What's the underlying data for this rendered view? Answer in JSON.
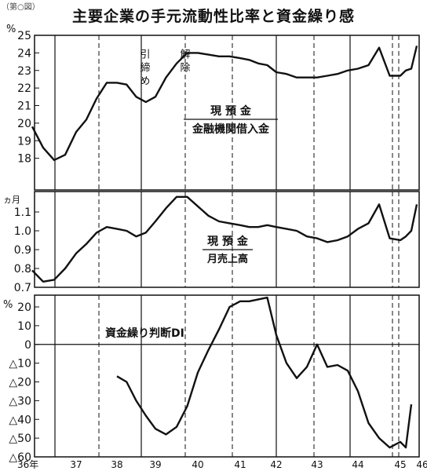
{
  "corner_note": "（第○図）",
  "title": "主要企業の手元流動性比率と資金繰り感",
  "x_axis": {
    "labels": [
      "36年",
      "37",
      "38",
      "39",
      "40",
      "41",
      "42",
      "43",
      "44",
      "45",
      "46"
    ],
    "solid_dividers": [
      "36年/37",
      "39/40",
      "41/42",
      "43/44"
    ],
    "dashed_dividers": [
      "37/38",
      "38/39",
      "40/41",
      "42/43",
      "44/45",
      "45/46"
    ]
  },
  "chart_data": [
    {
      "type": "line",
      "title": "",
      "ylabel": "%",
      "ylim": [
        17,
        25
      ],
      "yticks": [
        18,
        19,
        20,
        21,
        22,
        23,
        24,
        25
      ],
      "annotation_numerator": "現 預 金",
      "annotation_denominator": "金融機関借入金",
      "event_labels": [
        "引締め",
        "解除"
      ],
      "x": [
        36.0,
        36.25,
        36.5,
        36.75,
        37.0,
        37.25,
        37.5,
        37.75,
        38.0,
        38.25,
        38.5,
        38.75,
        39.0,
        39.25,
        39.5,
        39.75,
        40.0,
        40.25,
        40.5,
        40.75,
        41.0,
        41.25,
        41.5,
        41.75,
        42.0,
        42.25,
        42.5,
        42.75,
        43.0,
        43.25,
        43.5,
        43.75,
        44.0,
        44.25,
        44.5,
        44.75,
        45.0,
        45.25,
        45.5,
        45.75
      ],
      "values": [
        19.8,
        18.6,
        17.9,
        18.2,
        19.5,
        20.2,
        21.4,
        22.3,
        22.3,
        22.2,
        21.5,
        21.2,
        21.5,
        22.6,
        23.4,
        24.0,
        24.0,
        23.9,
        23.8,
        23.8,
        23.7,
        23.6,
        23.4,
        23.3,
        22.9,
        22.8,
        22.6,
        22.6,
        22.6,
        22.7,
        22.8,
        23.0,
        23.1,
        23.3,
        24.3,
        22.7,
        22.7,
        23.0,
        23.1,
        24.4
      ]
    },
    {
      "type": "line",
      "title": "",
      "ylabel": "ヵ月",
      "ylim": [
        0.7,
        1.2
      ],
      "yticks": [
        0.7,
        0.8,
        0.9,
        1.0,
        1.1
      ],
      "annotation_numerator": "現 預 金",
      "annotation_denominator": "月売上高",
      "x": [
        36.0,
        36.25,
        36.5,
        36.75,
        37.0,
        37.25,
        37.5,
        37.75,
        38.0,
        38.25,
        38.5,
        38.75,
        39.0,
        39.25,
        39.5,
        39.75,
        40.0,
        40.25,
        40.5,
        40.75,
        41.0,
        41.25,
        41.5,
        41.75,
        42.0,
        42.25,
        42.5,
        42.75,
        43.0,
        43.25,
        43.5,
        43.75,
        44.0,
        44.25,
        44.5,
        44.75,
        45.0,
        45.25,
        45.5,
        45.75
      ],
      "values": [
        0.79,
        0.73,
        0.74,
        0.8,
        0.88,
        0.93,
        0.99,
        1.02,
        1.01,
        1.0,
        0.97,
        0.99,
        1.05,
        1.12,
        1.18,
        1.18,
        1.13,
        1.08,
        1.05,
        1.04,
        1.03,
        1.02,
        1.02,
        1.03,
        1.02,
        1.01,
        1.0,
        0.97,
        0.96,
        0.94,
        0.95,
        0.97,
        1.01,
        1.04,
        1.14,
        0.96,
        0.95,
        0.97,
        1.0,
        1.14
      ]
    },
    {
      "type": "line",
      "title": "",
      "ylabel": "%",
      "ylim": [
        -60,
        25
      ],
      "yticks": [
        20,
        10,
        0,
        -10,
        -20,
        -30,
        -40,
        -50,
        -60
      ],
      "ytick_labels": [
        "20",
        "10",
        "0",
        "△10",
        "△20",
        "△30",
        "△40",
        "△50",
        "△60"
      ],
      "annotation": "資金繰り判断DI",
      "x": [
        38.0,
        38.25,
        38.5,
        38.75,
        39.0,
        39.25,
        39.5,
        39.75,
        40.0,
        40.25,
        40.5,
        40.75,
        41.0,
        41.25,
        41.5,
        41.75,
        42.0,
        42.25,
        42.5,
        42.75,
        43.0,
        43.25,
        43.5,
        43.75,
        44.0,
        44.25,
        44.5,
        44.75,
        45.0,
        45.25,
        45.5
      ],
      "values": [
        -17,
        -20,
        -30,
        -38,
        -45,
        -48,
        -44,
        -33,
        -15,
        -3,
        8,
        20,
        23,
        23,
        24,
        25,
        5,
        -10,
        -18,
        -12,
        0,
        -12,
        -11,
        -14,
        -25,
        -42,
        -50,
        -55,
        -52,
        -55,
        -32
      ]
    }
  ]
}
